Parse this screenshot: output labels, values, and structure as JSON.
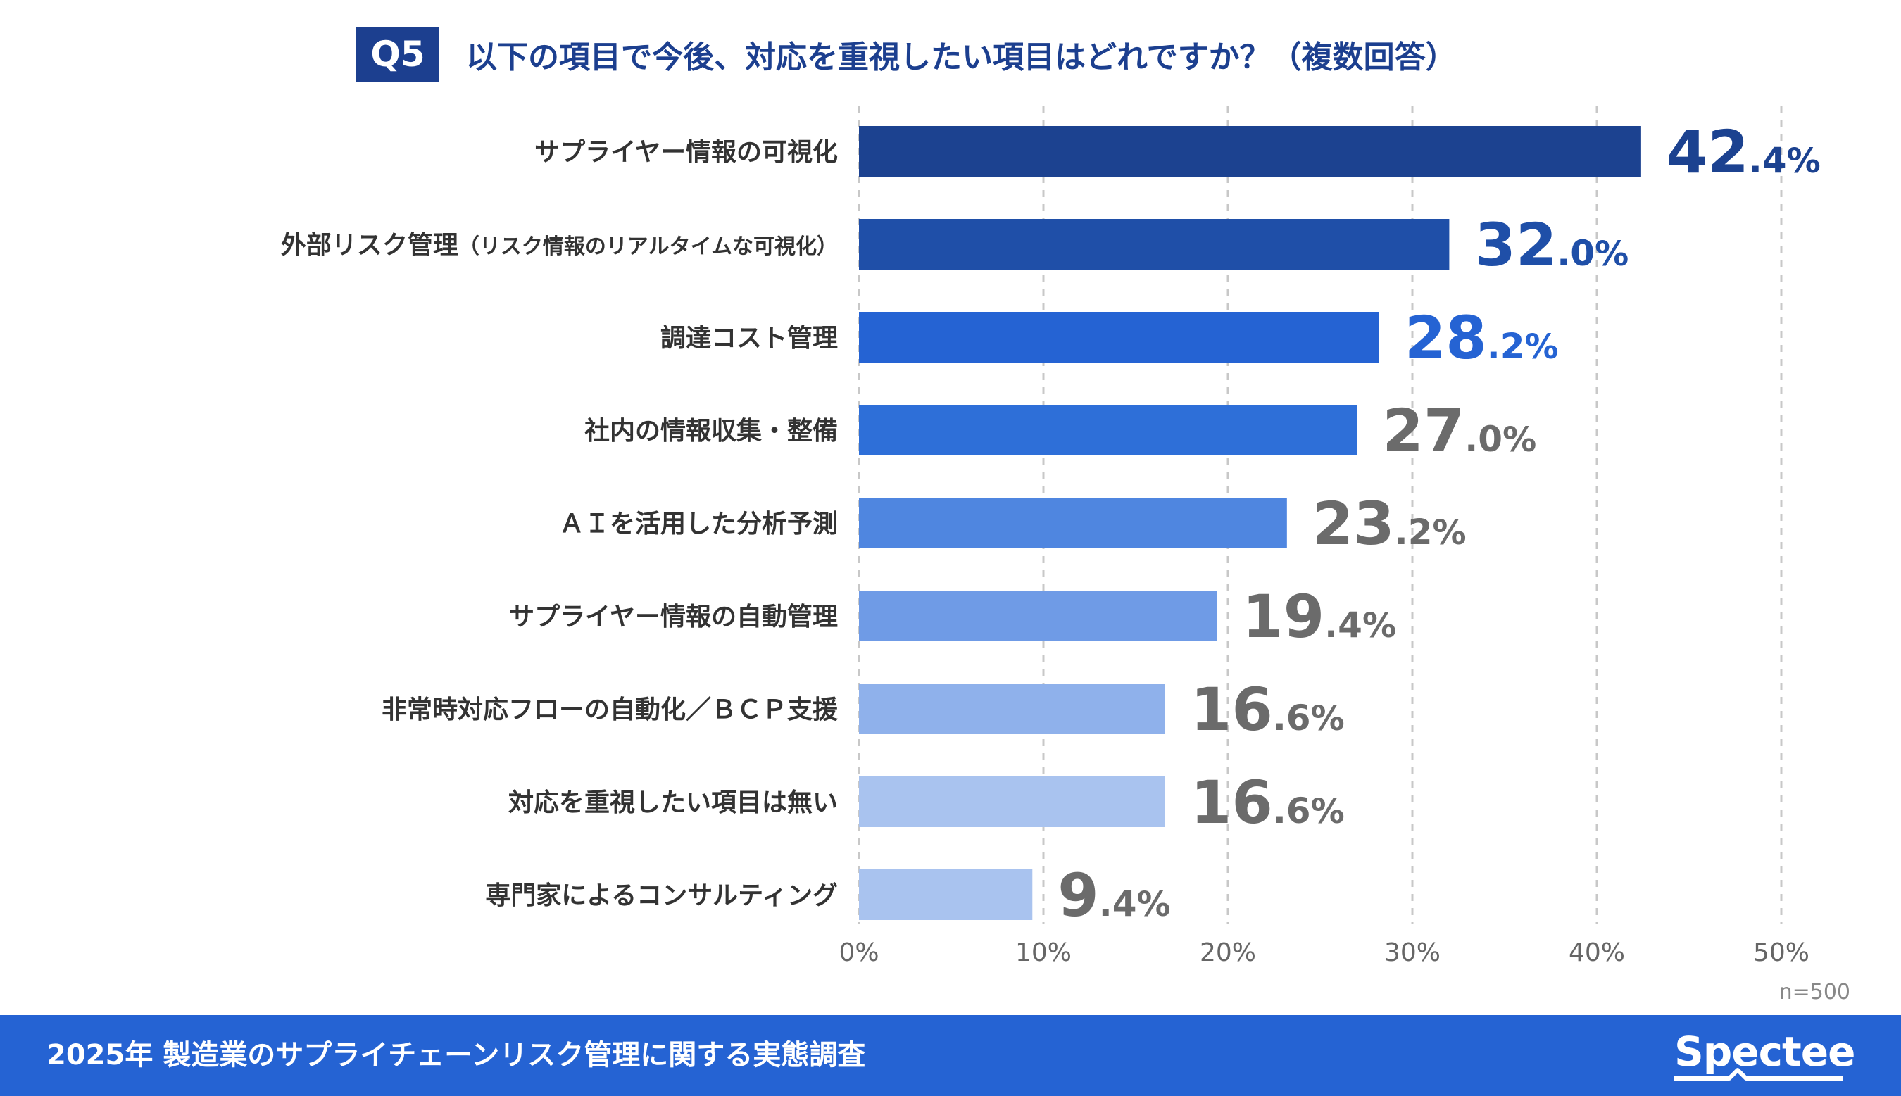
{
  "header": {
    "badge": "Q5",
    "question": "以下の項目で今後、対応を重視したい項目はどれですか？（複数回答）"
  },
  "chart_data": {
    "type": "bar",
    "orientation": "horizontal",
    "title": "以下の項目で今後、対応を重視したい項目はどれですか？（複数回答）",
    "categories": [
      {
        "main": "サプライヤー情報の可視化",
        "note": ""
      },
      {
        "main": "外部リスク管理",
        "note": "（リスク情報のリアルタイムな可視化）"
      },
      {
        "main": "調達コスト管理",
        "note": ""
      },
      {
        "main": "社内の情報収集・整備",
        "note": ""
      },
      {
        "main": "ＡＩを活用した分析予測",
        "note": ""
      },
      {
        "main": "サプライヤー情報の自動管理",
        "note": ""
      },
      {
        "main": "非常時対応フローの自動化／ＢＣＰ支援",
        "note": ""
      },
      {
        "main": "対応を重視したい項目は無い",
        "note": ""
      },
      {
        "main": "専門家によるコンサルティング",
        "note": ""
      }
    ],
    "values": [
      42.4,
      32.0,
      28.2,
      27.0,
      23.2,
      19.4,
      16.6,
      16.6,
      9.4
    ],
    "value_labels": [
      {
        "int": "42",
        "dec": ".4",
        "pct": "%"
      },
      {
        "int": "32",
        "dec": ".0",
        "pct": "%"
      },
      {
        "int": "28",
        "dec": ".2",
        "pct": "%"
      },
      {
        "int": "27",
        "dec": ".0",
        "pct": "%"
      },
      {
        "int": "23",
        "dec": ".2",
        "pct": "%"
      },
      {
        "int": "19",
        "dec": ".4",
        "pct": "%"
      },
      {
        "int": "16",
        "dec": ".6",
        "pct": "%"
      },
      {
        "int": "16",
        "dec": ".6",
        "pct": "%"
      },
      {
        "int": "9",
        "dec": ".4",
        "pct": "%"
      }
    ],
    "bar_colors": [
      "#1c4290",
      "#1f4fa8",
      "#2563d3",
      "#2e6fd8",
      "#4f86e0",
      "#6f9be6",
      "#8fb1eb",
      "#a9c3ef",
      "#a9c3ef"
    ],
    "label_colors": [
      "#1c4290",
      "#1f4fa8",
      "#2563d3",
      "#6b6b6b",
      "#6b6b6b",
      "#6b6b6b",
      "#6b6b6b",
      "#6b6b6b",
      "#6b6b6b"
    ],
    "xlim": [
      0,
      50
    ],
    "x_ticks": [
      0,
      10,
      20,
      30,
      40,
      50
    ],
    "x_tick_labels": [
      "0%",
      "10%",
      "20%",
      "30%",
      "40%",
      "50%"
    ],
    "grid": "vertical dashed",
    "xlabel": "",
    "ylabel": ""
  },
  "sample_size": "n=500",
  "footer": {
    "title": "2025年 製造業のサプライチェーンリスク管理に関する実態調査",
    "logo": "Spectee"
  }
}
